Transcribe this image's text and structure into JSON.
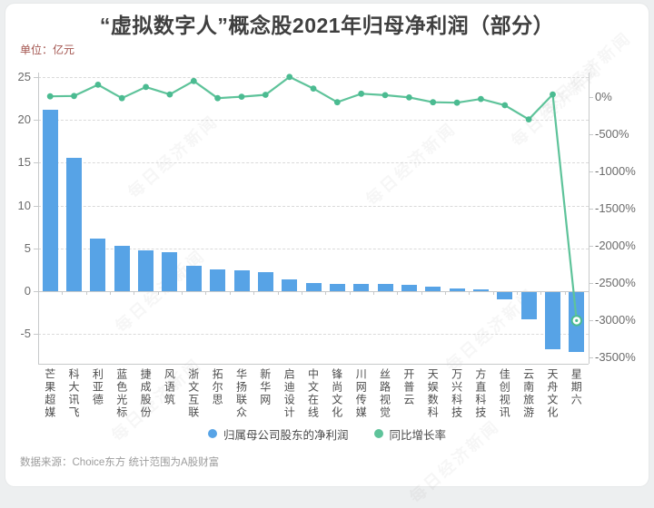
{
  "page": {
    "title": "“虚拟数字人”概念股2021年归母净利润（部分）",
    "unit_label": "单位：亿元",
    "source": "数据来源：Choice东方 统计范围为A股财富",
    "watermark": "每日经济新闻"
  },
  "legend": {
    "profit": "归属母公司股东的净利润",
    "growth": "同比增长率"
  },
  "colors": {
    "bar": "#57a3e6",
    "line": "#5ec39a",
    "line_dot": "#4bbb91",
    "unit_text": "#a3554f",
    "grid": "#dadada",
    "axis": "#c7c9ca"
  },
  "chart_data": {
    "type": "bar",
    "subtype": "bar+line dual axis combo",
    "title": "“虚拟数字人”概念股2021年归母净利润（部分）",
    "categories": [
      "芒果超媒",
      "科大讯飞",
      "利亚德",
      "蓝色光标",
      "捷成股份",
      "风语筑",
      "浙文互联",
      "拓尔思",
      "华扬联众",
      "新华网",
      "启迪设计",
      "中文在线",
      "锋尚文化",
      "川网传媒",
      "丝路视觉",
      "开普云",
      "天娱数科",
      "万兴科技",
      "方直科技",
      "佳创视讯",
      "云南旅游",
      "天舟文化",
      "星期六"
    ],
    "series": [
      {
        "name": "归属母公司股东的净利润",
        "type": "bar",
        "y_axis": "left",
        "unit": "亿元",
        "values": [
          21.2,
          15.6,
          6.2,
          5.3,
          4.8,
          4.6,
          3.0,
          2.5,
          2.4,
          2.2,
          1.4,
          1.0,
          0.9,
          0.85,
          0.8,
          0.7,
          0.5,
          0.3,
          0.25,
          -0.9,
          -3.3,
          -6.8,
          -7.1
        ]
      },
      {
        "name": "同比增长率",
        "type": "line",
        "y_axis": "right",
        "unit": "%",
        "values": [
          10,
          15,
          165,
          -15,
          135,
          35,
          215,
          -15,
          5,
          30,
          270,
          115,
          -70,
          45,
          25,
          -5,
          -70,
          -75,
          -25,
          -110,
          -300,
          35,
          -3000
        ]
      }
    ],
    "left_axis": {
      "unit": "亿元",
      "ticks": [
        25,
        20,
        15,
        10,
        5,
        0,
        -5
      ],
      "max": 25,
      "min": -8.5
    },
    "right_axis": {
      "unit": "%",
      "ticks": [
        "0%",
        "-500%",
        "-1000%",
        "-1500%",
        "-2000%",
        "-2500%",
        "-3000%",
        "-3500%"
      ],
      "max": 330,
      "min": -3580
    },
    "grid": "horizontal dashed gridlines on left-axis ticks",
    "legend_position": "bottom center",
    "annotations": "last line point (星期六, -3000%) drawn as hollow ring marker"
  }
}
